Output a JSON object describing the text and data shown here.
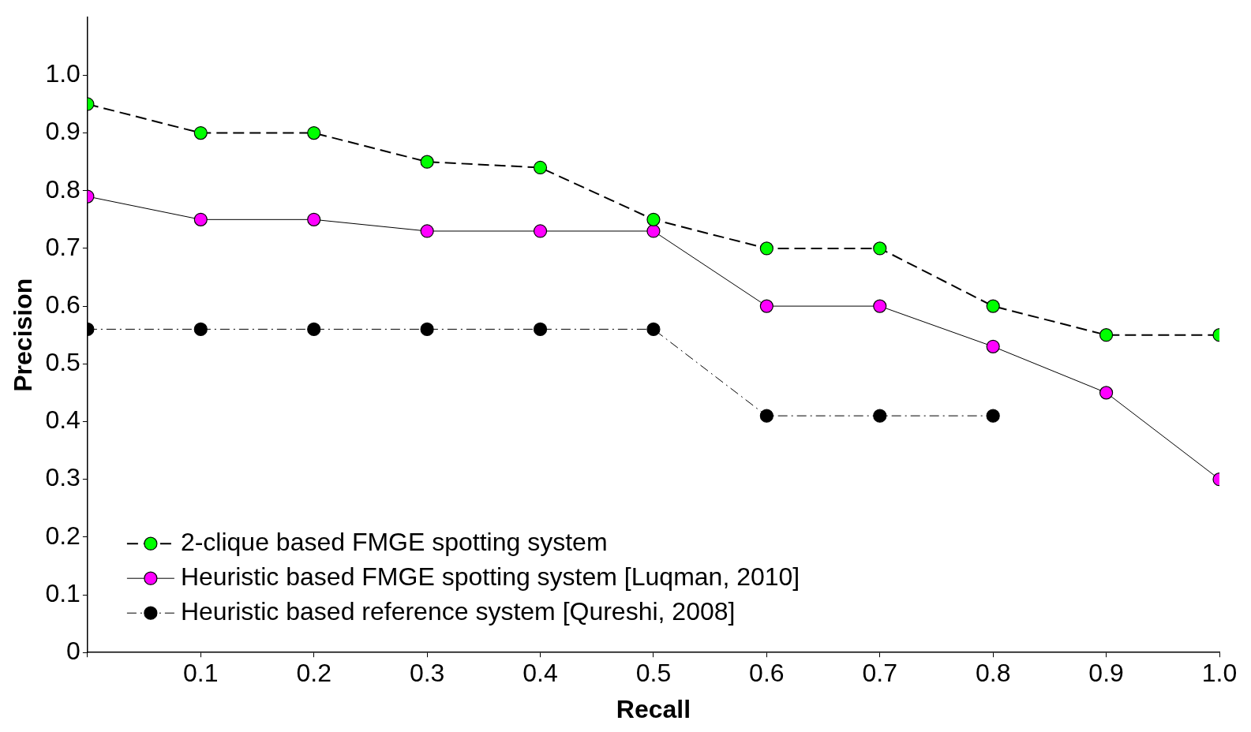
{
  "chart_data": {
    "type": "line",
    "xlabel": "Recall",
    "ylabel": "Precision",
    "x": [
      0,
      0.1,
      0.2,
      0.3,
      0.4,
      0.5,
      0.6,
      0.7,
      0.8,
      0.9,
      1.0
    ],
    "xlim": [
      0,
      1.0
    ],
    "ylim": [
      0,
      1.1
    ],
    "xticks": [
      {
        "value": 0,
        "label": null
      },
      0.1,
      0.2,
      0.3,
      0.4,
      0.5,
      0.6,
      0.7,
      0.8,
      0.9,
      {
        "value": 1,
        "label": "1.0"
      }
    ],
    "yticks": [
      0,
      0.1,
      0.2,
      0.3,
      0.4,
      0.5,
      0.6,
      0.7,
      0.8,
      0.9,
      {
        "value": 1,
        "label": "1.0"
      }
    ],
    "grid": false,
    "legend": "bottom left",
    "marker": "circle",
    "series": [
      {
        "name": "2-clique based FMGE spotting system",
        "color": "#00ff00",
        "line_style": "dashed",
        "values": [
          0.95,
          0.9,
          0.9,
          0.85,
          0.84,
          0.75,
          0.7,
          0.7,
          0.6,
          0.55,
          0.55
        ]
      },
      {
        "name": "Heuristic based FMGE spotting system [Luqman, 2010]",
        "color": "#ff00ff",
        "line_style": "solid",
        "values": [
          0.79,
          0.75,
          0.75,
          0.73,
          0.73,
          0.73,
          0.6,
          0.6,
          0.53,
          0.45,
          0.3
        ]
      },
      {
        "name": "Heuristic based reference system [Qureshi, 2008]",
        "color": "#000000",
        "line_style": "dotted",
        "values": [
          0.56,
          0.56,
          0.56,
          0.56,
          0.56,
          0.56,
          0.41,
          0.41,
          0.41,
          null,
          null
        ]
      }
    ]
  }
}
